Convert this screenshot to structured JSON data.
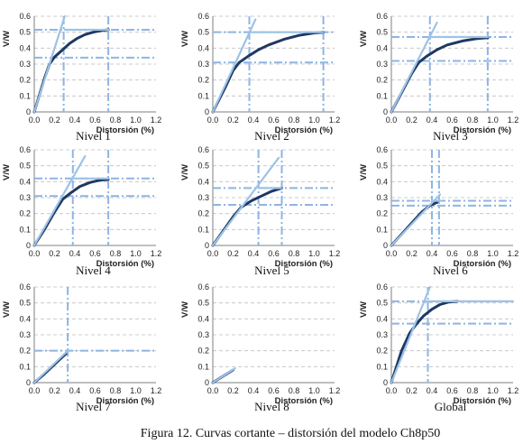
{
  "figure": {
    "caption": "Figura 12. Curvas cortante – distorsión del modelo Ch8p50"
  },
  "colors": {
    "curve": "#1f3864",
    "bilinear": "#9dc3e6",
    "reference": "#8eb4e3",
    "grid": "#bfbfbf"
  },
  "chart_data": [
    {
      "type": "line",
      "title": "Nivel 1",
      "xlabel": "Distorsión (%)",
      "ylabel": "V/W",
      "xlim": [
        0,
        1.2
      ],
      "ylim": [
        0,
        0.6
      ],
      "xticks": [
        "0.0",
        "0.2",
        "0.4",
        "0.6",
        "0.8",
        "1.0",
        "1.2"
      ],
      "yticks": [
        "0",
        "0.1",
        "0.2",
        "0.3",
        "0.4",
        "0.5",
        "0.6"
      ],
      "grid": true,
      "series": [
        {
          "role": "curve",
          "x": [
            0,
            0.1,
            0.15,
            0.2,
            0.28,
            0.35,
            0.42,
            0.5,
            0.58,
            0.66,
            0.73
          ],
          "y": [
            0,
            0.21,
            0.3,
            0.345,
            0.39,
            0.43,
            0.46,
            0.485,
            0.5,
            0.51,
            0.515
          ]
        },
        {
          "role": "bilinear",
          "x": [
            0,
            0.3
          ],
          "y": [
            0,
            0.6
          ]
        },
        {
          "role": "bilinear",
          "x": [
            0.3,
            0.73
          ],
          "y": [
            0.515,
            0.515
          ]
        }
      ],
      "ref_h": [
        0.515,
        0.34
      ],
      "ref_v": [
        0.29,
        0.73
      ]
    },
    {
      "type": "line",
      "title": "Nivel 2",
      "xlabel": "Distorsión (%)",
      "ylabel": "V/W",
      "xlim": [
        0,
        1.2
      ],
      "ylim": [
        0,
        0.6
      ],
      "xticks": [
        "0.0",
        "0.2",
        "0.4",
        "0.6",
        "0.8",
        "1.0",
        "1.2"
      ],
      "yticks": [
        "0",
        "0.1",
        "0.2",
        "0.3",
        "0.4",
        "0.5",
        "0.6"
      ],
      "grid": true,
      "series": [
        {
          "role": "curve",
          "x": [
            0,
            0.12,
            0.2,
            0.26,
            0.35,
            0.45,
            0.55,
            0.7,
            0.85,
            1.0,
            1.09
          ],
          "y": [
            0,
            0.15,
            0.26,
            0.31,
            0.35,
            0.39,
            0.42,
            0.455,
            0.48,
            0.495,
            0.5
          ]
        },
        {
          "role": "bilinear",
          "x": [
            0,
            0.42
          ],
          "y": [
            0,
            0.58
          ]
        },
        {
          "role": "bilinear",
          "x": [
            0.36,
            1.09
          ],
          "y": [
            0.5,
            0.5
          ]
        }
      ],
      "ref_h": [
        0.5,
        0.31
      ],
      "ref_v": [
        0.36,
        1.09
      ]
    },
    {
      "type": "line",
      "title": "Nivel 3",
      "xlabel": "Distorsión (%)",
      "ylabel": "V/W",
      "xlim": [
        0,
        1.2
      ],
      "ylim": [
        0,
        0.6
      ],
      "xticks": [
        "0.0",
        "0.2",
        "0.4",
        "0.6",
        "0.8",
        "1.0",
        "1.2"
      ],
      "yticks": [
        "0",
        "0.1",
        "0.2",
        "0.3",
        "0.4",
        "0.5",
        "0.6"
      ],
      "grid": true,
      "series": [
        {
          "role": "curve",
          "x": [
            0,
            0.1,
            0.2,
            0.27,
            0.35,
            0.45,
            0.55,
            0.7,
            0.85,
            0.95
          ],
          "y": [
            0,
            0.12,
            0.24,
            0.31,
            0.35,
            0.39,
            0.42,
            0.445,
            0.46,
            0.465
          ]
        },
        {
          "role": "bilinear",
          "x": [
            0,
            0.45
          ],
          "y": [
            0,
            0.56
          ]
        },
        {
          "role": "bilinear",
          "x": [
            0.38,
            0.95
          ],
          "y": [
            0.47,
            0.47
          ]
        }
      ],
      "ref_h": [
        0.47,
        0.32
      ],
      "ref_v": [
        0.38,
        0.95
      ]
    },
    {
      "type": "line",
      "title": "Nivel 4",
      "xlabel": "Distorsión (%)",
      "ylabel": "V/W",
      "xlim": [
        0,
        1.2
      ],
      "ylim": [
        0,
        0.6
      ],
      "xticks": [
        "0.0",
        "0.2",
        "0.4",
        "0.6",
        "0.8",
        "1.0",
        "1.2"
      ],
      "yticks": [
        "0",
        "0.1",
        "0.2",
        "0.3",
        "0.4",
        "0.5",
        "0.6"
      ],
      "grid": true,
      "series": [
        {
          "role": "curve",
          "x": [
            0,
            0.1,
            0.2,
            0.28,
            0.36,
            0.45,
            0.55,
            0.65,
            0.73
          ],
          "y": [
            0,
            0.1,
            0.21,
            0.29,
            0.33,
            0.37,
            0.395,
            0.41,
            0.415
          ]
        },
        {
          "role": "bilinear",
          "x": [
            0,
            0.5
          ],
          "y": [
            0,
            0.56
          ]
        },
        {
          "role": "bilinear",
          "x": [
            0.38,
            0.73
          ],
          "y": [
            0.42,
            0.42
          ]
        }
      ],
      "ref_h": [
        0.42,
        0.31
      ],
      "ref_v": [
        0.38,
        0.73
      ]
    },
    {
      "type": "line",
      "title": "Nivel 5",
      "xlabel": "Distorsión (%)",
      "ylabel": "V/W",
      "xlim": [
        0,
        1.2
      ],
      "ylim": [
        0,
        0.6
      ],
      "xticks": [
        "0.0",
        "0.2",
        "0.4",
        "0.6",
        "0.8",
        "1.0",
        "1.2"
      ],
      "yticks": [
        "0",
        "0.1",
        "0.2",
        "0.3",
        "0.4",
        "0.5",
        "0.6"
      ],
      "grid": true,
      "series": [
        {
          "role": "curve",
          "x": [
            0,
            0.1,
            0.2,
            0.28,
            0.38,
            0.48,
            0.58,
            0.68
          ],
          "y": [
            0,
            0.09,
            0.18,
            0.24,
            0.28,
            0.31,
            0.34,
            0.36
          ]
        },
        {
          "role": "bilinear",
          "x": [
            0,
            0.65
          ],
          "y": [
            0,
            0.55
          ]
        },
        {
          "role": "bilinear",
          "x": [
            0.45,
            0.68
          ],
          "y": [
            0.36,
            0.36
          ]
        }
      ],
      "ref_h": [
        0.36,
        0.255
      ],
      "ref_v": [
        0.45,
        0.68
      ]
    },
    {
      "type": "line",
      "title": "Nivel 6",
      "xlabel": "Distorsión (%)",
      "ylabel": "V/W",
      "xlim": [
        0,
        1.2
      ],
      "ylim": [
        0,
        0.6
      ],
      "xticks": [
        "0.0",
        "0.2",
        "0.4",
        "0.6",
        "0.8",
        "1.0",
        "1.2"
      ],
      "yticks": [
        "0",
        "0.1",
        "0.2",
        "0.3",
        "0.4",
        "0.5",
        "0.6"
      ],
      "grid": true,
      "series": [
        {
          "role": "curve",
          "x": [
            0,
            0.1,
            0.2,
            0.3,
            0.38,
            0.45
          ],
          "y": [
            0,
            0.07,
            0.14,
            0.21,
            0.25,
            0.27
          ]
        },
        {
          "role": "bilinear",
          "x": [
            0,
            0.48
          ],
          "y": [
            0,
            0.32
          ]
        },
        {
          "role": "bilinear",
          "x": [
            0.4,
            0.48
          ],
          "y": [
            0.28,
            0.28
          ]
        }
      ],
      "ref_h": [
        0.28,
        0.25
      ],
      "ref_v": [
        0.4,
        0.47
      ]
    },
    {
      "type": "line",
      "title": "Nivel 7",
      "xlabel": "Distorsión (%)",
      "ylabel": "V/W",
      "xlim": [
        0,
        1.2
      ],
      "ylim": [
        0,
        0.6
      ],
      "xticks": [
        "0.0",
        "0.2",
        "0.4",
        "0.6",
        "0.8",
        "1.0",
        "1.2"
      ],
      "yticks": [
        "0",
        "0.1",
        "0.2",
        "0.3",
        "0.4",
        "0.5",
        "0.6"
      ],
      "grid": true,
      "series": [
        {
          "role": "curve",
          "x": [
            0,
            0.1,
            0.2,
            0.31
          ],
          "y": [
            0,
            0.055,
            0.115,
            0.18
          ]
        },
        {
          "role": "bilinear",
          "x": [
            0,
            0.33
          ],
          "y": [
            0,
            0.2
          ]
        }
      ],
      "ref_h": [
        0.2
      ],
      "ref_v": [
        0.33
      ]
    },
    {
      "type": "line",
      "title": "Nivel 8",
      "xlabel": "Distorsión (%)",
      "ylabel": "V/W",
      "xlim": [
        0,
        1.2
      ],
      "ylim": [
        0,
        0.6
      ],
      "xticks": [
        "0.0",
        "0.2",
        "0.4",
        "0.6",
        "0.8",
        "1.0",
        "1.2"
      ],
      "yticks": [
        "0",
        "0.1",
        "0.2",
        "0.3",
        "0.4",
        "0.5",
        "0.6"
      ],
      "grid": true,
      "series": [
        {
          "role": "curve",
          "x": [
            0,
            0.1,
            0.2
          ],
          "y": [
            0,
            0.04,
            0.08
          ]
        },
        {
          "role": "bilinear",
          "x": [
            0,
            0.22
          ],
          "y": [
            0,
            0.09
          ]
        }
      ],
      "ref_h": [],
      "ref_v": []
    },
    {
      "type": "line",
      "title": "Global",
      "xlabel": "Distorsión (%)",
      "ylabel": "V/W",
      "xlim": [
        0,
        1.2
      ],
      "ylim": [
        0,
        0.6
      ],
      "xticks": [
        "0.0",
        "0.2",
        "0.4",
        "0.6",
        "0.8",
        "1.0",
        "1.2"
      ],
      "yticks": [
        "0",
        "0.1",
        "0.2",
        "0.3",
        "0.4",
        "0.5",
        "0.6"
      ],
      "grid": true,
      "series": [
        {
          "role": "curve",
          "x": [
            0,
            0.1,
            0.18,
            0.25,
            0.32,
            0.4,
            0.48,
            0.56,
            0.65
          ],
          "y": [
            0,
            0.2,
            0.31,
            0.37,
            0.42,
            0.46,
            0.49,
            0.505,
            0.51
          ]
        },
        {
          "role": "bilinear",
          "x": [
            0,
            0.38
          ],
          "y": [
            0,
            0.6
          ]
        },
        {
          "role": "bilinear",
          "x": [
            0.36,
            1.2
          ],
          "y": [
            0.51,
            0.51
          ]
        }
      ],
      "ref_h": [
        0.51,
        0.37
      ],
      "ref_v": [
        0.36
      ]
    }
  ]
}
